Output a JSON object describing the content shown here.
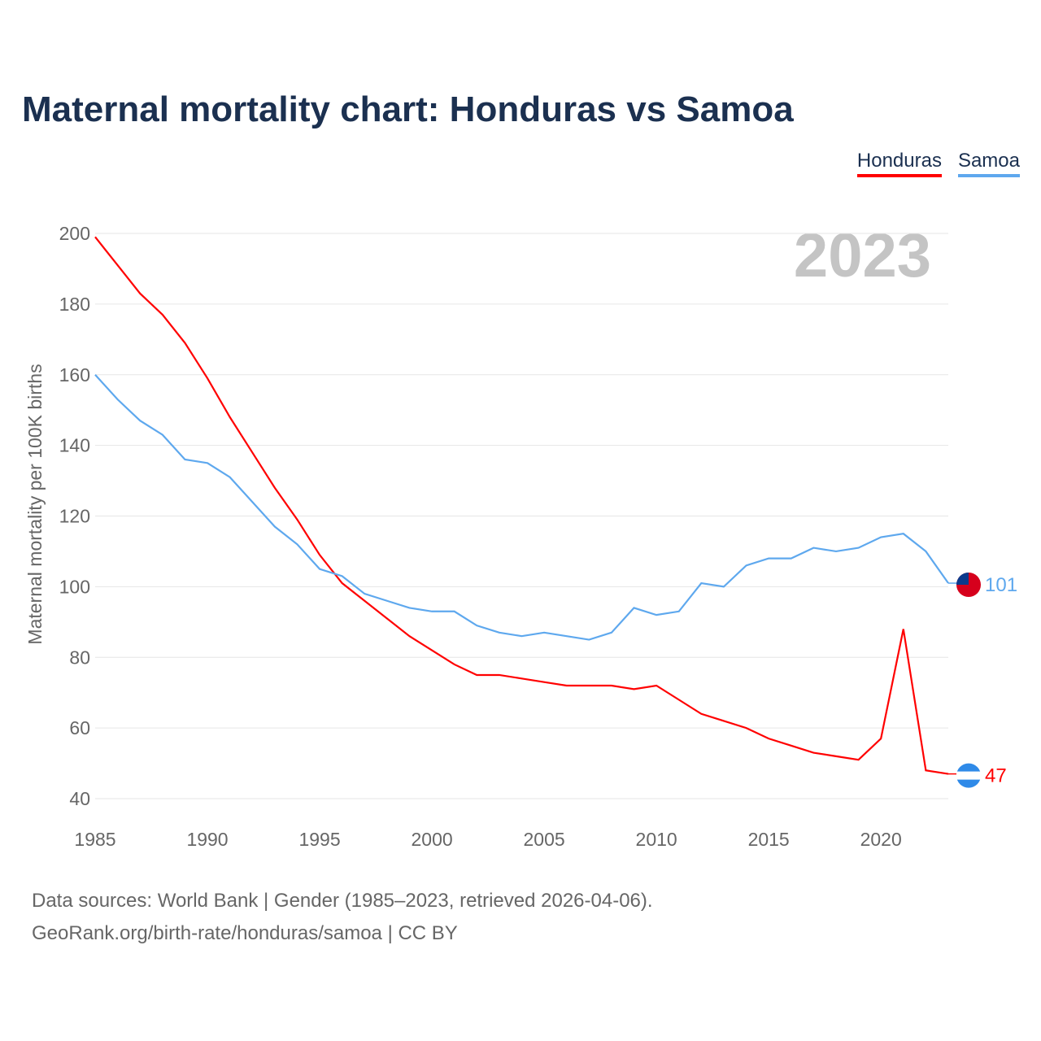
{
  "title": "Maternal mortality chart: Honduras vs Samoa",
  "footer": {
    "line1": "Data sources: World Bank | Gender (1985–2023, retrieved 2026-04-06).",
    "line2": "GeoRank.org/birth-rate/honduras/samoa | CC BY"
  },
  "chart_data": {
    "type": "line",
    "title": "Maternal mortality chart: Honduras vs Samoa",
    "ylabel": "Maternal mortality per 100K births",
    "xlabel": "",
    "year_label": "2023",
    "xlim": [
      1985,
      2023
    ],
    "ylim": [
      40,
      200
    ],
    "xticks": [
      "1985",
      "1990",
      "1995",
      "2000",
      "2005",
      "2010",
      "2015",
      "2020"
    ],
    "yticks": [
      "40",
      "60",
      "80",
      "100",
      "120",
      "140",
      "160",
      "180",
      "200"
    ],
    "grid": true,
    "legend_position": "top-right",
    "x": [
      1985,
      1986,
      1987,
      1988,
      1989,
      1990,
      1991,
      1992,
      1993,
      1994,
      1995,
      1996,
      1997,
      1998,
      1999,
      2000,
      2001,
      2002,
      2003,
      2004,
      2005,
      2006,
      2007,
      2008,
      2009,
      2010,
      2011,
      2012,
      2013,
      2014,
      2015,
      2016,
      2017,
      2018,
      2019,
      2020,
      2021,
      2022,
      2023
    ],
    "series": [
      {
        "name": "Honduras",
        "color": "#ff0000",
        "end_label": "47",
        "values": [
          199,
          191,
          183,
          177,
          169,
          159,
          148,
          138,
          128,
          119,
          109,
          101,
          96,
          91,
          86,
          82,
          78,
          75,
          75,
          74,
          73,
          72,
          72,
          72,
          71,
          72,
          68,
          64,
          62,
          60,
          57,
          55,
          53,
          52,
          51,
          57,
          88,
          48,
          47
        ]
      },
      {
        "name": "Samoa",
        "color": "#5ea8ee",
        "end_label": "101",
        "values": [
          160,
          153,
          147,
          143,
          136,
          135,
          131,
          124,
          117,
          112,
          105,
          103,
          98,
          96,
          94,
          93,
          93,
          89,
          87,
          86,
          87,
          86,
          85,
          87,
          94,
          92,
          93,
          101,
          100,
          106,
          108,
          108,
          111,
          110,
          111,
          114,
          115,
          110,
          101
        ]
      }
    ]
  }
}
